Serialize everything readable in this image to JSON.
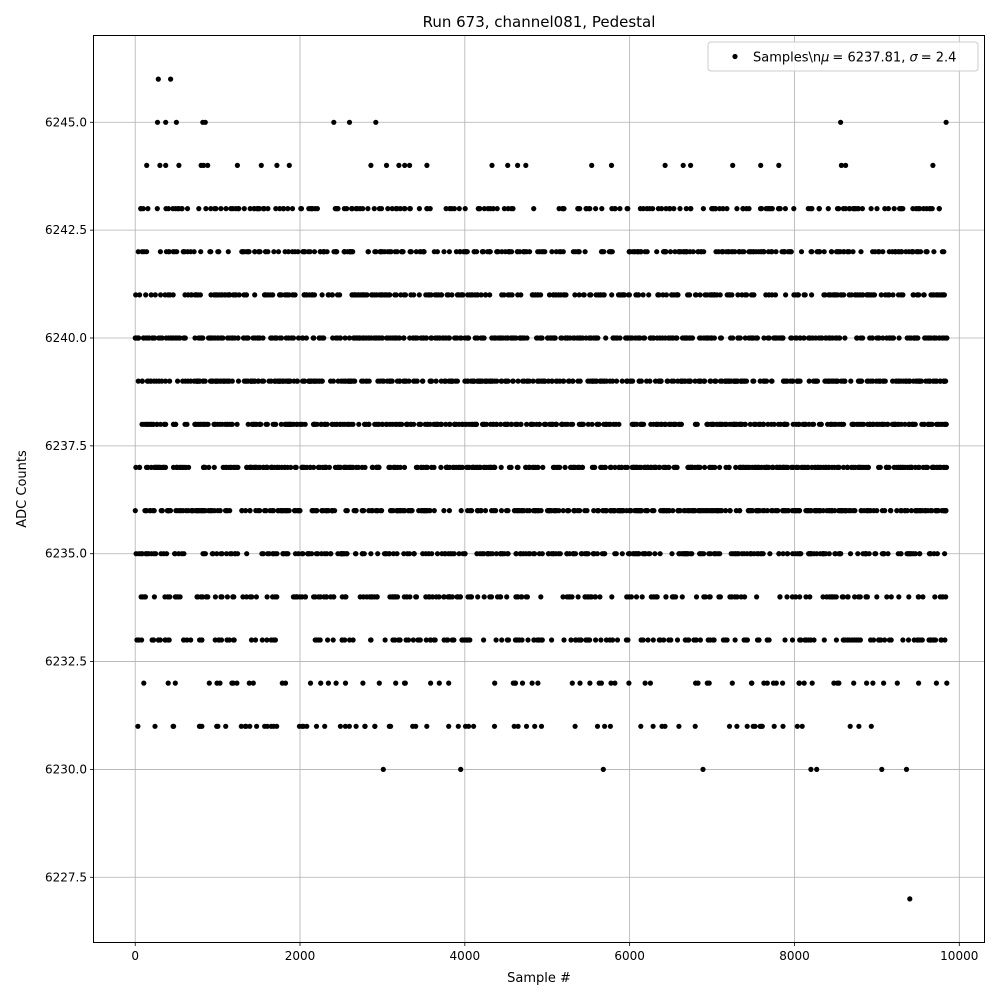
{
  "chart_data": {
    "type": "scatter",
    "title": "Run 673, channel081, Pedestal",
    "xlabel": "Sample #",
    "ylabel": "ADC Counts",
    "xlim": [
      -500,
      10300
    ],
    "ylim": [
      6226,
      6247
    ],
    "xticks": [
      0,
      2000,
      4000,
      6000,
      8000,
      10000
    ],
    "xtick_labels": [
      "0",
      "2000",
      "4000",
      "6000",
      "8000",
      "10000"
    ],
    "yticks": [
      6227.5,
      6230.0,
      6232.5,
      6235.0,
      6237.5,
      6240.0,
      6242.5,
      6245.0
    ],
    "ytick_labels": [
      "6227.5",
      "6230.0",
      "6232.5",
      "6235.0",
      "6237.5",
      "6240.0",
      "6242.5",
      "6245.0"
    ],
    "grid": true,
    "legend": {
      "position": "top-right",
      "entries": [
        {
          "label_prefix": "Samples\\n",
          "mu_symbol": "μ",
          "mu_value": "= 6237.81, ",
          "sigma_symbol": "σ",
          "sigma_value": "= 2.4"
        }
      ]
    },
    "series": [
      {
        "name": "Samples\\nμ = 6237.81, σ = 2.4",
        "color": "#000000",
        "x_range": [
          0,
          9850
        ],
        "dense_levels": [
          6236,
          6237,
          6238,
          6239,
          6240
        ],
        "medium_levels": [
          6235,
          6241,
          6242
        ],
        "sparse_levels": [
          6233,
          6234,
          6243
        ],
        "rare_levels": [
          6232,
          6231
        ],
        "outliers": [
          {
            "x": 280,
            "y": 6246
          },
          {
            "x": 430,
            "y": 6246
          },
          {
            "x": 270,
            "y": 6245
          },
          {
            "x": 370,
            "y": 6245
          },
          {
            "x": 500,
            "y": 6245
          },
          {
            "x": 820,
            "y": 6245
          },
          {
            "x": 850,
            "y": 6245
          },
          {
            "x": 2410,
            "y": 6245
          },
          {
            "x": 2600,
            "y": 6245
          },
          {
            "x": 2920,
            "y": 6245
          },
          {
            "x": 8560,
            "y": 6245
          },
          {
            "x": 9840,
            "y": 6245
          },
          {
            "x": 140,
            "y": 6244
          },
          {
            "x": 300,
            "y": 6244
          },
          {
            "x": 370,
            "y": 6244
          },
          {
            "x": 530,
            "y": 6244
          },
          {
            "x": 800,
            "y": 6244
          },
          {
            "x": 830,
            "y": 6244
          },
          {
            "x": 880,
            "y": 6244
          },
          {
            "x": 1240,
            "y": 6244
          },
          {
            "x": 1530,
            "y": 6244
          },
          {
            "x": 1720,
            "y": 6244
          },
          {
            "x": 1870,
            "y": 6244
          },
          {
            "x": 2860,
            "y": 6244
          },
          {
            "x": 3050,
            "y": 6244
          },
          {
            "x": 3200,
            "y": 6244
          },
          {
            "x": 3270,
            "y": 6244
          },
          {
            "x": 3330,
            "y": 6244
          },
          {
            "x": 3540,
            "y": 6244
          },
          {
            "x": 4330,
            "y": 6244
          },
          {
            "x": 4520,
            "y": 6244
          },
          {
            "x": 4640,
            "y": 6244
          },
          {
            "x": 4740,
            "y": 6244
          },
          {
            "x": 5540,
            "y": 6244
          },
          {
            "x": 5780,
            "y": 6244
          },
          {
            "x": 6430,
            "y": 6244
          },
          {
            "x": 6650,
            "y": 6244
          },
          {
            "x": 6740,
            "y": 6244
          },
          {
            "x": 7250,
            "y": 6244
          },
          {
            "x": 7590,
            "y": 6244
          },
          {
            "x": 7810,
            "y": 6244
          },
          {
            "x": 8570,
            "y": 6244
          },
          {
            "x": 8620,
            "y": 6244
          },
          {
            "x": 9680,
            "y": 6244
          },
          {
            "x": 1650,
            "y": 6231
          },
          {
            "x": 2200,
            "y": 6231
          },
          {
            "x": 2300,
            "y": 6231
          },
          {
            "x": 2490,
            "y": 6231
          },
          {
            "x": 2680,
            "y": 6231
          },
          {
            "x": 3010,
            "y": 6230
          },
          {
            "x": 3950,
            "y": 6230
          },
          {
            "x": 5680,
            "y": 6230
          },
          {
            "x": 6890,
            "y": 6230
          },
          {
            "x": 8200,
            "y": 6230
          },
          {
            "x": 8270,
            "y": 6230
          },
          {
            "x": 9060,
            "y": 6230
          },
          {
            "x": 9360,
            "y": 6230
          },
          {
            "x": 9400,
            "y": 6227
          }
        ]
      }
    ]
  }
}
